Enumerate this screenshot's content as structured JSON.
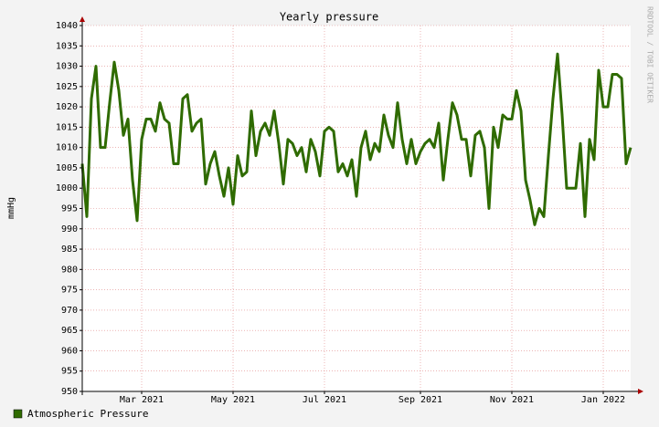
{
  "chart_data": {
    "type": "line",
    "title": "Yearly pressure",
    "y_label": "mmHg",
    "watermark": "RRDTOOL / TOBI OETIKER",
    "categories": [
      null,
      null,
      null,
      null,
      null,
      null,
      null,
      null,
      null,
      null,
      null,
      null,
      null,
      "Mar 2021",
      null,
      null,
      null,
      null,
      null,
      null,
      null,
      null,
      null,
      null,
      null,
      null,
      null,
      null,
      null,
      null,
      null,
      null,
      null,
      "May 2021",
      null,
      null,
      null,
      null,
      null,
      null,
      null,
      null,
      null,
      null,
      null,
      null,
      null,
      null,
      null,
      null,
      null,
      null,
      null,
      "Jul 2021",
      null,
      null,
      null,
      null,
      null,
      null,
      null,
      null,
      null,
      null,
      null,
      null,
      null,
      null,
      null,
      null,
      null,
      null,
      null,
      null,
      "Sep 2021",
      null,
      null,
      null,
      null,
      null,
      null,
      null,
      null,
      null,
      null,
      null,
      null,
      null,
      null,
      null,
      null,
      null,
      null,
      null,
      "Nov 2021",
      null,
      null,
      null,
      null,
      null,
      null,
      null,
      null,
      null,
      null,
      null,
      null,
      null,
      null,
      null,
      null,
      null,
      null,
      null,
      "Jan 2022",
      null,
      null,
      null,
      null,
      null,
      null
    ],
    "series": [
      {
        "name": "Atmospheric Pressure",
        "color": "#2f6b00",
        "values": [
          1006,
          993,
          1022,
          1030,
          1010,
          1010,
          1021,
          1031,
          1024,
          1013,
          1017,
          1002,
          992,
          1012,
          1017,
          1017,
          1014,
          1021,
          1017,
          1016,
          1006,
          1006,
          1022,
          1023,
          1014,
          1016,
          1017,
          1001,
          1006,
          1009,
          1003,
          998,
          1005,
          996,
          1008,
          1003,
          1004,
          1019,
          1008,
          1014,
          1016,
          1013,
          1019,
          1011,
          1001,
          1012,
          1011,
          1008,
          1010,
          1004,
          1012,
          1009,
          1003,
          1014,
          1015,
          1014,
          1004,
          1006,
          1003,
          1007,
          998,
          1010,
          1014,
          1007,
          1011,
          1009,
          1018,
          1013,
          1010,
          1021,
          1012,
          1006,
          1012,
          1006,
          1009,
          1011,
          1012,
          1010,
          1016,
          1002,
          1012,
          1021,
          1018,
          1012,
          1012,
          1003,
          1013,
          1014,
          1010,
          995,
          1015,
          1010,
          1018,
          1017,
          1017,
          1024,
          1019,
          1002,
          997,
          991,
          995,
          993,
          1008,
          1022,
          1033,
          1018,
          1000,
          1000,
          1000,
          1011,
          993,
          1012,
          1007,
          1029,
          1020,
          1020,
          1028,
          1028,
          1027,
          1006,
          1010
        ]
      }
    ],
    "ylim": [
      950,
      1040
    ],
    "yticks": [
      950,
      955,
      960,
      965,
      970,
      975,
      980,
      985,
      990,
      995,
      1000,
      1005,
      1010,
      1015,
      1020,
      1025,
      1030,
      1035,
      1040
    ],
    "grid": true
  }
}
